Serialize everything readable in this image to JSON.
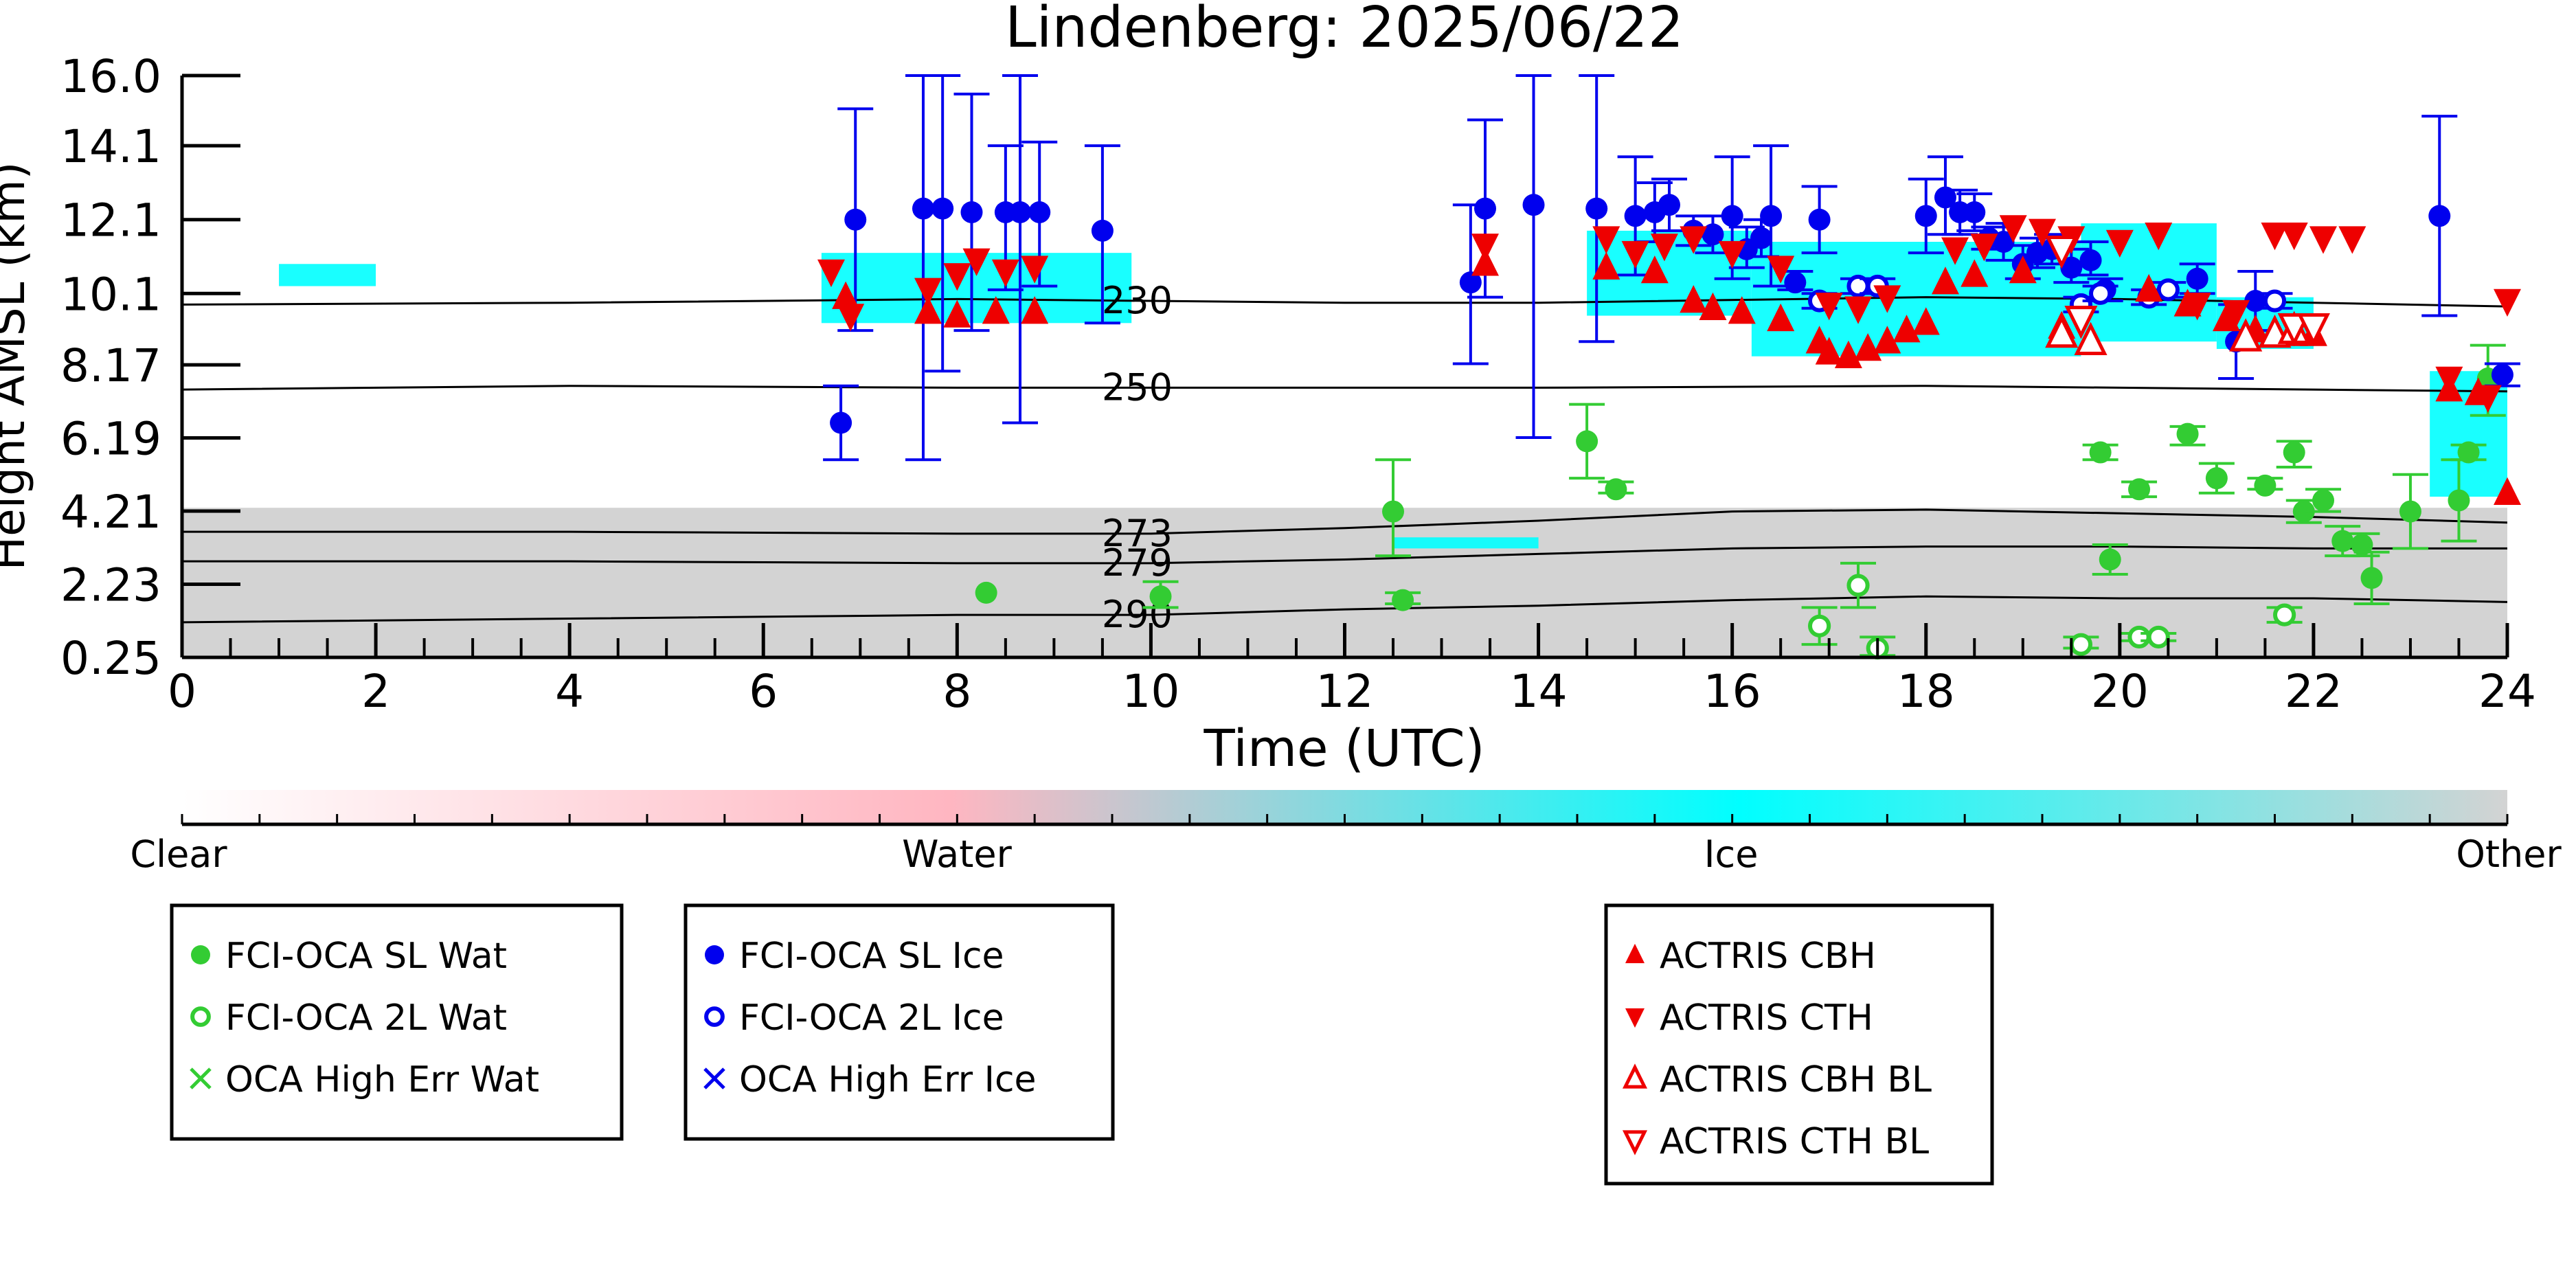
{
  "chart_data": {
    "type": "scatter",
    "title": "Lindenberg: 2025/06/22",
    "xlabel": "Time (UTC)",
    "ylabel": "Height AMSL (km)",
    "xlim": [
      0,
      24
    ],
    "ylim": [
      0.25,
      16.0
    ],
    "x_ticks": [
      "0",
      "2",
      "4",
      "6",
      "8",
      "10",
      "12",
      "14",
      "16",
      "18",
      "20",
      "22",
      "24"
    ],
    "y_ticks": [
      "16.0",
      "14.1",
      "12.1",
      "10.1",
      "8.17",
      "6.19",
      "4.21",
      "2.23",
      "0.25"
    ],
    "colorbar": {
      "labels": [
        "Clear",
        "Water",
        "Ice",
        "Other"
      ],
      "colors": [
        "#ffffff",
        "#ffb6c1",
        "#00ffff",
        "#d3d3d3"
      ]
    },
    "isotherms": [
      {
        "label": "230",
        "points": [
          [
            0,
            9.8
          ],
          [
            4,
            9.85
          ],
          [
            8,
            9.95
          ],
          [
            10,
            9.9
          ],
          [
            12,
            9.85
          ],
          [
            14,
            9.85
          ],
          [
            18,
            10.0
          ],
          [
            20,
            9.95
          ],
          [
            22,
            9.85
          ],
          [
            24,
            9.75
          ]
        ]
      },
      {
        "label": "250",
        "points": [
          [
            0,
            7.5
          ],
          [
            4,
            7.6
          ],
          [
            8,
            7.55
          ],
          [
            10,
            7.55
          ],
          [
            14,
            7.55
          ],
          [
            18,
            7.6
          ],
          [
            22,
            7.5
          ],
          [
            24,
            7.45
          ]
        ]
      },
      {
        "label": "273",
        "points": [
          [
            0,
            3.65
          ],
          [
            4,
            3.65
          ],
          [
            8,
            3.6
          ],
          [
            10,
            3.6
          ],
          [
            12,
            3.75
          ],
          [
            14,
            3.95
          ],
          [
            16,
            4.2
          ],
          [
            18,
            4.25
          ],
          [
            20,
            4.15
          ],
          [
            22,
            4.05
          ],
          [
            24,
            3.9
          ]
        ]
      },
      {
        "label": "279",
        "points": [
          [
            0,
            2.85
          ],
          [
            4,
            2.85
          ],
          [
            8,
            2.8
          ],
          [
            10,
            2.8
          ],
          [
            12,
            2.9
          ],
          [
            14,
            3.05
          ],
          [
            16,
            3.2
          ],
          [
            18,
            3.25
          ],
          [
            20,
            3.25
          ],
          [
            22,
            3.2
          ],
          [
            24,
            3.2
          ]
        ]
      },
      {
        "label": "290",
        "points": [
          [
            0,
            1.2
          ],
          [
            4,
            1.3
          ],
          [
            8,
            1.4
          ],
          [
            10,
            1.4
          ],
          [
            12,
            1.55
          ],
          [
            14,
            1.65
          ],
          [
            16,
            1.8
          ],
          [
            18,
            1.9
          ],
          [
            20,
            1.85
          ],
          [
            22,
            1.85
          ],
          [
            24,
            1.75
          ]
        ]
      }
    ],
    "cloud_regions": [
      {
        "phase": "Other",
        "x0": 0,
        "x1": 24,
        "y0": 0.25,
        "y1": 4.3
      },
      {
        "phase": "Ice",
        "x0": 6.6,
        "x1": 9.8,
        "y0": 9.3,
        "y1": 11.2
      },
      {
        "phase": "Ice",
        "x0": 14.5,
        "x1": 16.2,
        "y0": 9.5,
        "y1": 11.8
      },
      {
        "phase": "Ice",
        "x0": 16.2,
        "x1": 19.6,
        "y0": 8.4,
        "y1": 11.5
      },
      {
        "phase": "Ice",
        "x0": 19.6,
        "x1": 21.0,
        "y0": 8.8,
        "y1": 12.0
      },
      {
        "phase": "Ice",
        "x0": 21.0,
        "x1": 22.0,
        "y0": 8.6,
        "y1": 10.0
      },
      {
        "phase": "Ice",
        "x0": 23.2,
        "x1": 24.0,
        "y0": 4.6,
        "y1": 8.0
      },
      {
        "phase": "Ice",
        "x0": 1.0,
        "x1": 2.0,
        "y0": 10.3,
        "y1": 10.9
      },
      {
        "phase": "Ice",
        "x0": 12.5,
        "x1": 14.0,
        "y0": 3.2,
        "y1": 3.5
      }
    ],
    "series": [
      {
        "name": "FCI-OCA SL Wat",
        "marker": "filled-circle",
        "color": "#33cc33",
        "points": [
          [
            8.3,
            2.0,
            2.0,
            2.0
          ],
          [
            10.1,
            1.9,
            1.6,
            2.3
          ],
          [
            12.5,
            4.2,
            3.0,
            5.6
          ],
          [
            12.6,
            1.8,
            1.7,
            2.0
          ],
          [
            14.5,
            6.1,
            5.1,
            7.1
          ],
          [
            14.8,
            4.8,
            4.7,
            5.0
          ],
          [
            19.8,
            5.8,
            5.6,
            6.0
          ],
          [
            19.9,
            2.9,
            2.5,
            3.3
          ],
          [
            20.2,
            4.8,
            4.6,
            5.0
          ],
          [
            20.7,
            6.3,
            6.0,
            6.5
          ],
          [
            21.0,
            5.1,
            4.7,
            5.5
          ],
          [
            21.5,
            4.9,
            4.8,
            5.1
          ],
          [
            21.8,
            5.8,
            5.4,
            6.1
          ],
          [
            21.9,
            4.2,
            3.9,
            4.5
          ],
          [
            22.1,
            4.5,
            4.2,
            4.8
          ],
          [
            22.3,
            3.4,
            3.0,
            3.8
          ],
          [
            22.5,
            3.3,
            3.0,
            3.6
          ],
          [
            22.6,
            2.4,
            1.7,
            3.1
          ],
          [
            23.0,
            4.2,
            3.2,
            5.2
          ],
          [
            23.5,
            4.5,
            3.4,
            5.6
          ],
          [
            23.6,
            5.8,
            5.6,
            6.0
          ],
          [
            23.8,
            7.8,
            6.8,
            8.7
          ]
        ]
      },
      {
        "name": "FCI-OCA 2L Wat",
        "marker": "open-circle",
        "color": "#33cc33",
        "points": [
          [
            16.9,
            1.1,
            0.6,
            1.6
          ],
          [
            17.3,
            2.2,
            1.6,
            2.8
          ],
          [
            17.5,
            0.5,
            0.3,
            0.8
          ],
          [
            19.6,
            0.6,
            0.5,
            0.8
          ],
          [
            20.2,
            0.8,
            0.7,
            0.9
          ],
          [
            20.4,
            0.8,
            0.7,
            0.9
          ],
          [
            21.7,
            1.4,
            1.2,
            1.6
          ]
        ]
      },
      {
        "name": "OCA High Err Wat",
        "marker": "x",
        "color": "#33cc33",
        "points": []
      },
      {
        "name": "FCI-OCA SL Ice",
        "marker": "filled-circle",
        "color": "#0000ee",
        "points": [
          [
            6.8,
            6.6,
            5.6,
            7.6
          ],
          [
            6.95,
            12.1,
            9.1,
            15.1
          ],
          [
            7.65,
            12.4,
            5.6,
            16.0
          ],
          [
            7.85,
            12.4,
            8.0,
            16.0
          ],
          [
            8.15,
            12.3,
            9.1,
            15.5
          ],
          [
            8.5,
            12.3,
            10.2,
            14.1
          ],
          [
            8.65,
            12.3,
            6.6,
            16.0
          ],
          [
            8.85,
            12.3,
            10.3,
            14.2
          ],
          [
            9.5,
            11.8,
            9.3,
            14.1
          ],
          [
            13.3,
            10.4,
            8.2,
            12.5
          ],
          [
            13.45,
            12.4,
            10.0,
            14.8
          ],
          [
            13.95,
            12.5,
            6.2,
            16.0
          ],
          [
            14.6,
            12.4,
            8.8,
            16.0
          ],
          [
            15.0,
            12.2,
            10.6,
            13.8
          ],
          [
            15.2,
            12.3,
            11.5,
            13.1
          ],
          [
            15.35,
            12.5,
            11.8,
            13.2
          ],
          [
            15.6,
            11.8,
            11.4,
            12.2
          ],
          [
            15.8,
            11.7,
            11.2,
            12.2
          ],
          [
            16.0,
            12.2,
            10.5,
            13.8
          ],
          [
            16.15,
            11.3,
            10.8,
            11.9
          ],
          [
            16.3,
            11.6,
            11.1,
            12.1
          ],
          [
            16.4,
            12.2,
            10.3,
            14.1
          ],
          [
            16.65,
            10.4,
            10.2,
            10.7
          ],
          [
            16.9,
            12.1,
            11.2,
            13.0
          ],
          [
            18.0,
            12.2,
            11.2,
            13.2
          ],
          [
            18.2,
            12.7,
            11.7,
            13.8
          ],
          [
            18.35,
            12.3,
            11.7,
            12.9
          ],
          [
            18.5,
            12.3,
            11.8,
            12.8
          ],
          [
            18.65,
            11.6,
            11.3,
            11.9
          ],
          [
            18.8,
            11.5,
            11.0,
            12.0
          ],
          [
            19.0,
            10.9,
            10.5,
            11.4
          ],
          [
            19.15,
            11.2,
            10.8,
            11.6
          ],
          [
            19.3,
            11.3,
            10.9,
            11.7
          ],
          [
            19.5,
            10.8,
            10.4,
            11.3
          ],
          [
            19.7,
            11.0,
            10.6,
            11.5
          ],
          [
            19.85,
            10.2,
            9.9,
            10.5
          ],
          [
            20.8,
            10.5,
            10.1,
            10.9
          ],
          [
            21.2,
            8.8,
            7.8,
            9.8
          ],
          [
            21.4,
            9.9,
            9.1,
            10.7
          ],
          [
            23.3,
            12.2,
            9.5,
            14.9
          ],
          [
            23.95,
            7.9,
            7.6,
            8.2
          ]
        ]
      },
      {
        "name": "FCI-OCA 2L Ice",
        "marker": "open-circle",
        "color": "#0000ee",
        "points": [
          [
            16.9,
            9.9,
            9.7,
            10.1
          ],
          [
            17.3,
            10.3,
            10.1,
            10.5
          ],
          [
            17.5,
            10.3,
            10.1,
            10.5
          ],
          [
            19.6,
            9.8,
            9.6,
            10.0
          ],
          [
            19.8,
            10.1,
            9.9,
            10.3
          ],
          [
            20.3,
            10.0,
            9.8,
            10.2
          ],
          [
            20.5,
            10.2,
            10.0,
            10.4
          ],
          [
            21.6,
            9.9,
            9.7,
            10.1
          ]
        ]
      },
      {
        "name": "OCA High Err Ice",
        "marker": "x",
        "color": "#0000ee",
        "points": []
      },
      {
        "name": "ACTRIS CBH",
        "marker": "filled-triangle-up",
        "color": "#ee0000",
        "points": [
          [
            6.85,
            10.0
          ],
          [
            7.7,
            9.6
          ],
          [
            8.0,
            9.5
          ],
          [
            8.4,
            9.6
          ],
          [
            8.8,
            9.6
          ],
          [
            13.45,
            10.9
          ],
          [
            14.7,
            10.8
          ],
          [
            15.2,
            10.7
          ],
          [
            15.6,
            9.9
          ],
          [
            15.8,
            9.7
          ],
          [
            16.1,
            9.6
          ],
          [
            16.5,
            9.4
          ],
          [
            16.9,
            8.8
          ],
          [
            17.0,
            8.5
          ],
          [
            17.2,
            8.4
          ],
          [
            17.4,
            8.6
          ],
          [
            17.6,
            8.8
          ],
          [
            17.8,
            9.1
          ],
          [
            18.0,
            9.3
          ],
          [
            18.2,
            10.4
          ],
          [
            18.5,
            10.6
          ],
          [
            19.0,
            10.7
          ],
          [
            19.4,
            9.2
          ],
          [
            19.7,
            8.8
          ],
          [
            20.3,
            10.2
          ],
          [
            20.7,
            9.8
          ],
          [
            21.1,
            9.4
          ],
          [
            21.4,
            9.1
          ],
          [
            21.8,
            9.0
          ],
          [
            22.0,
            9.0
          ],
          [
            23.4,
            7.5
          ],
          [
            23.7,
            7.4
          ],
          [
            24.0,
            4.7
          ]
        ]
      },
      {
        "name": "ACTRIS CTH",
        "marker": "filled-triangle-down",
        "color": "#ee0000",
        "points": [
          [
            6.7,
            10.7
          ],
          [
            6.9,
            9.5
          ],
          [
            7.7,
            10.2
          ],
          [
            8.0,
            10.6
          ],
          [
            8.2,
            11.0
          ],
          [
            8.5,
            10.7
          ],
          [
            8.8,
            10.8
          ],
          [
            13.45,
            11.4
          ],
          [
            14.7,
            11.6
          ],
          [
            15.0,
            11.2
          ],
          [
            15.3,
            11.4
          ],
          [
            15.6,
            11.6
          ],
          [
            16.0,
            11.2
          ],
          [
            16.5,
            10.8
          ],
          [
            17.0,
            9.8
          ],
          [
            17.3,
            9.7
          ],
          [
            17.6,
            10.0
          ],
          [
            18.3,
            11.3
          ],
          [
            18.6,
            11.4
          ],
          [
            18.9,
            11.9
          ],
          [
            19.2,
            11.8
          ],
          [
            19.5,
            11.6
          ],
          [
            20.0,
            11.5
          ],
          [
            20.4,
            11.7
          ],
          [
            20.8,
            9.8
          ],
          [
            21.2,
            9.6
          ],
          [
            21.6,
            11.7
          ],
          [
            21.8,
            11.7
          ],
          [
            22.1,
            11.6
          ],
          [
            22.4,
            11.6
          ],
          [
            23.4,
            7.8
          ],
          [
            23.8,
            7.3
          ],
          [
            24.0,
            9.9
          ]
        ]
      },
      {
        "name": "ACTRIS CBH BL",
        "marker": "open-triangle-up",
        "color": "#ee0000",
        "points": [
          [
            19.4,
            9.0
          ],
          [
            19.7,
            8.8
          ],
          [
            21.3,
            8.9
          ],
          [
            21.6,
            9.0
          ],
          [
            21.8,
            9.1
          ]
        ]
      },
      {
        "name": "ACTRIS CTH BL",
        "marker": "open-triangle-down",
        "color": "#ee0000",
        "points": [
          [
            19.4,
            11.3
          ],
          [
            19.6,
            9.4
          ],
          [
            21.8,
            9.2
          ],
          [
            22.0,
            9.2
          ]
        ]
      }
    ],
    "legend_placement": "bottom",
    "legend_boxes": [
      [
        "FCI-OCA SL Wat",
        "FCI-OCA 2L Wat",
        "OCA High Err Wat"
      ],
      [
        "FCI-OCA SL Ice",
        "FCI-OCA 2L Ice",
        "OCA High Err Ice"
      ],
      [
        "ACTRIS CBH",
        "ACTRIS CTH",
        "ACTRIS CBH BL",
        "ACTRIS CTH BL"
      ]
    ]
  }
}
